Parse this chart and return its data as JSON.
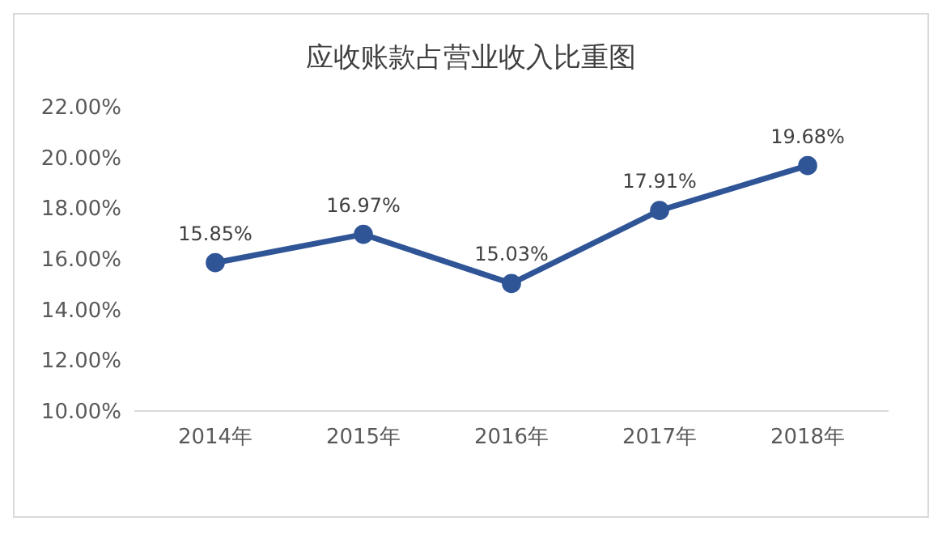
{
  "chart_data": {
    "type": "line",
    "title": "应收账款占营业收入比重图",
    "categories": [
      "2014年",
      "2015年",
      "2016年",
      "2017年",
      "2018年"
    ],
    "series": [
      {
        "color": "#2f5597",
        "values": [
          15.85,
          16.97,
          15.03,
          17.91,
          19.68
        ]
      }
    ],
    "value_labels": [
      "15.85%",
      "16.97%",
      "15.03%",
      "17.91%",
      "19.68%"
    ],
    "ylim": [
      10,
      22
    ],
    "yticks": [
      {
        "value": 10,
        "label": "10.00%"
      },
      {
        "value": 12,
        "label": "12.00%"
      },
      {
        "value": 14,
        "label": "14.00%"
      },
      {
        "value": 16,
        "label": "16.00%"
      },
      {
        "value": 18,
        "label": "18.00%"
      },
      {
        "value": 20,
        "label": "20.00%"
      },
      {
        "value": 22,
        "label": "22.00%"
      }
    ],
    "grid": false,
    "marker": "circle",
    "line_style": "solid"
  }
}
